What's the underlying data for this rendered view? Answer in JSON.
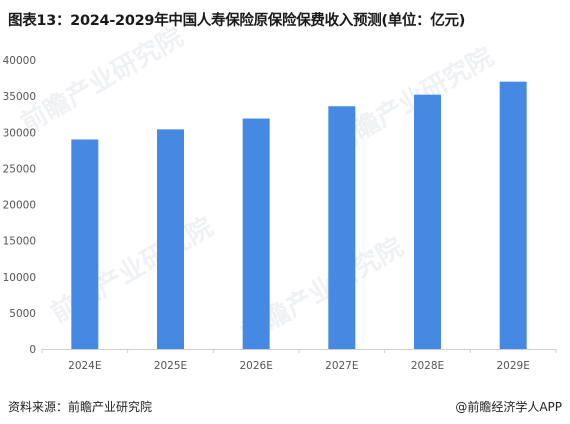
{
  "title": "图表13：2024-2029年中国人寿保险原保险保费收入预测(单位：亿元)",
  "source_label": "资料来源：前瞻产业研究院",
  "brand": "@前瞻经济学人APP",
  "watermark": "前瞻产业研究院",
  "colors": {
    "bar": "#4589E2",
    "axis": "#cfcfcf",
    "text": "#555555"
  },
  "chart_data": {
    "type": "bar",
    "title": "图表13：2024-2029年中国人寿保险原保险保费收入预测(单位：亿元)",
    "categories": [
      "2024E",
      "2025E",
      "2026E",
      "2027E",
      "2028E",
      "2029E"
    ],
    "values": [
      29000,
      30400,
      31900,
      33600,
      35200,
      37000
    ],
    "ylim": [
      0,
      40000
    ],
    "yticks": [
      0,
      5000,
      10000,
      15000,
      20000,
      25000,
      30000,
      35000,
      40000
    ],
    "grid": false,
    "legend": "none"
  }
}
